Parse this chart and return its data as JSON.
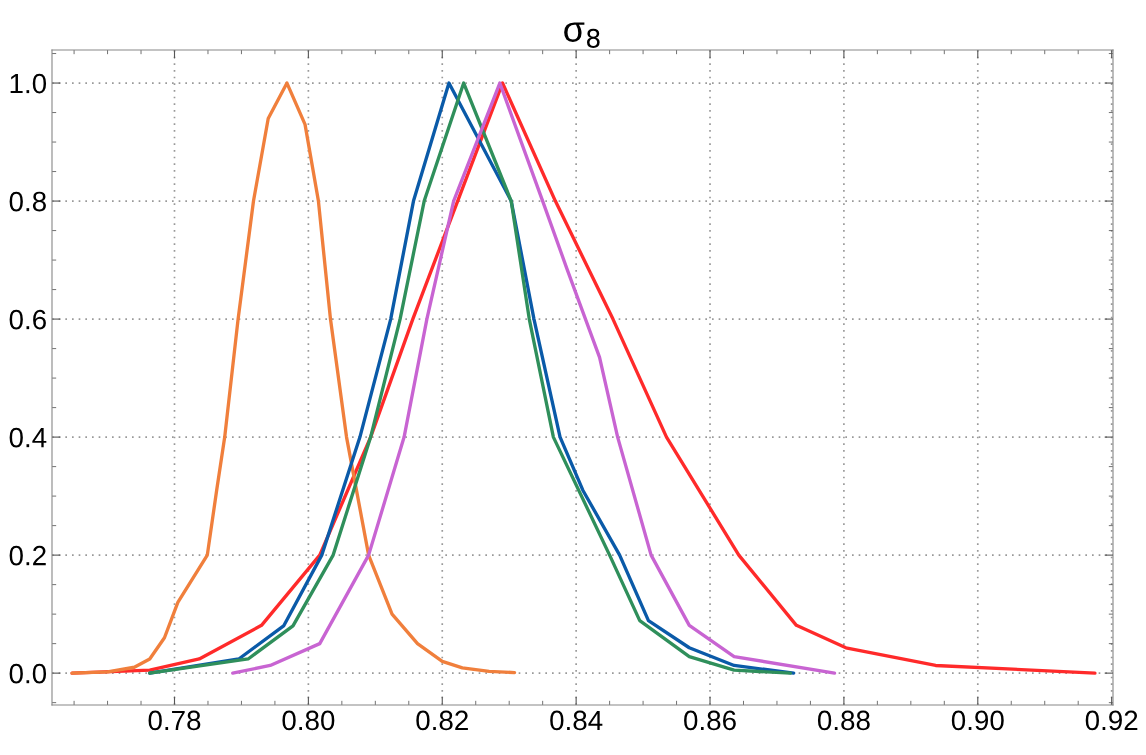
{
  "chart_data": {
    "type": "line",
    "title": "σ$_{8}$",
    "xlim": [
      0.7617,
      0.9202
    ],
    "ylim": [
      -0.054,
      1.056
    ],
    "xticks": [
      0.78,
      {
        "value": 0.8,
        "label": "0.80"
      },
      0.82,
      0.84,
      0.86,
      0.88,
      {
        "value": 0.9,
        "label": "0.90"
      },
      0.92
    ],
    "yticks": [
      {
        "value": 0,
        "label": "0.0"
      },
      0.2,
      0.4,
      0.6,
      0.8,
      {
        "value": 1,
        "label": "1.0"
      }
    ],
    "grid": true,
    "marker": "none",
    "line_style": "solid",
    "series": [
      {
        "color": "#ff2a2a",
        "x": [
          0.7647,
          0.7763,
          0.7837,
          0.793,
          0.8017,
          0.8093,
          0.8156,
          0.8223,
          0.829,
          0.8369,
          0.8455,
          0.8535,
          0.8643,
          0.8729,
          0.8803,
          0.8937,
          0.9175
        ],
        "values": [
          0,
          0.005,
          0.024,
          0.081,
          0.2,
          0.4,
          0.6,
          0.8,
          1.0,
          0.8,
          0.6,
          0.4,
          0.2,
          0.081,
          0.043,
          0.013,
          0
        ]
      },
      {
        "color": "#f07f3c",
        "x": [
          0.7647,
          0.77,
          0.774,
          0.7763,
          0.7785,
          0.7805,
          0.7849,
          0.7863,
          0.7875,
          0.7895,
          0.7918,
          0.794,
          0.7968,
          0.7995,
          0.8015,
          0.8033,
          0.8057,
          0.809,
          0.8125,
          0.8163,
          0.82,
          0.823,
          0.827,
          0.8308
        ],
        "values": [
          0,
          0.002,
          0.01,
          0.024,
          0.06,
          0.12,
          0.2,
          0.31,
          0.4,
          0.6,
          0.8,
          0.94,
          1.0,
          0.93,
          0.8,
          0.6,
          0.4,
          0.2,
          0.1,
          0.05,
          0.02,
          0.009,
          0.003,
          0.001
        ]
      },
      {
        "color": "#0a5aa8",
        "x": [
          0.7763,
          0.7896,
          0.7963,
          0.802,
          0.8077,
          0.8123,
          0.8157,
          0.821,
          0.8303,
          0.8337,
          0.8376,
          0.841,
          0.8465,
          0.8508,
          0.8569,
          0.8636,
          0.8725
        ],
        "values": [
          0,
          0.024,
          0.08,
          0.2,
          0.4,
          0.6,
          0.8,
          1.0,
          0.8,
          0.6,
          0.4,
          0.31,
          0.2,
          0.089,
          0.043,
          0.013,
          0
        ]
      },
      {
        "color": "#2f8f5b",
        "x": [
          0.7763,
          0.791,
          0.7977,
          0.8037,
          0.8093,
          0.8137,
          0.8173,
          0.8232,
          0.8303,
          0.833,
          0.8366,
          0.845,
          0.8495,
          0.8569,
          0.8636,
          0.872
        ],
        "values": [
          0,
          0.024,
          0.08,
          0.2,
          0.4,
          0.6,
          0.8,
          1.0,
          0.8,
          0.6,
          0.4,
          0.2,
          0.089,
          0.028,
          0.005,
          0
        ]
      },
      {
        "color": "#c864d2",
        "x": [
          0.7887,
          0.7943,
          0.8017,
          0.809,
          0.8143,
          0.8177,
          0.8217,
          0.8286,
          0.835,
          0.8386,
          0.8435,
          0.8462,
          0.8512,
          0.8569,
          0.8636,
          0.8786
        ],
        "values": [
          0,
          0.013,
          0.05,
          0.2,
          0.4,
          0.6,
          0.8,
          1.0,
          0.8,
          0.686,
          0.535,
          0.4,
          0.2,
          0.081,
          0.028,
          0
        ]
      }
    ]
  }
}
